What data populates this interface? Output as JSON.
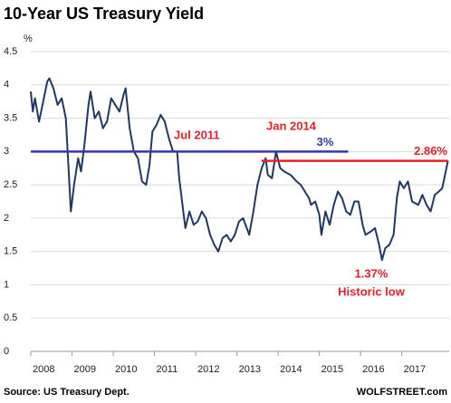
{
  "chart_data": {
    "type": "line",
    "title": "10-Year US Treasury Yield",
    "y_label": "%",
    "source": "Source: US Treasury Dept.",
    "credit": "WOLFSTREET.com",
    "color": "#1f3864",
    "grid": true,
    "xlim": [
      2008,
      2018.15
    ],
    "ylim": [
      0,
      4.5
    ],
    "xticks": [
      2008,
      2009,
      2010,
      2011,
      2012,
      2013,
      2014,
      2015,
      2016,
      2017
    ],
    "yticks": [
      0,
      0.5,
      1,
      1.5,
      2,
      2.5,
      3,
      3.5,
      4,
      4.5
    ],
    "x": [
      2008.0,
      2008.05,
      2008.1,
      2008.2,
      2008.3,
      2008.4,
      2008.45,
      2008.55,
      2008.65,
      2008.75,
      2008.85,
      2008.92,
      2008.97,
      2009.05,
      2009.15,
      2009.22,
      2009.3,
      2009.4,
      2009.45,
      2009.55,
      2009.65,
      2009.75,
      2009.85,
      2009.95,
      2010.05,
      2010.15,
      2010.25,
      2010.3,
      2010.4,
      2010.5,
      2010.6,
      2010.7,
      2010.8,
      2010.88,
      2010.95,
      2011.05,
      2011.15,
      2011.25,
      2011.35,
      2011.45,
      2011.55,
      2011.6,
      2011.7,
      2011.75,
      2011.85,
      2011.95,
      2012.05,
      2012.15,
      2012.25,
      2012.35,
      2012.45,
      2012.55,
      2012.65,
      2012.75,
      2012.85,
      2012.95,
      2013.05,
      2013.15,
      2013.3,
      2013.4,
      2013.5,
      2013.6,
      2013.7,
      2013.75,
      2013.85,
      2013.95,
      2014.05,
      2014.15,
      2014.3,
      2014.45,
      2014.55,
      2014.65,
      2014.75,
      2014.8,
      2014.9,
      2015.0,
      2015.05,
      2015.15,
      2015.25,
      2015.35,
      2015.45,
      2015.55,
      2015.65,
      2015.75,
      2015.85,
      2015.95,
      2016.05,
      2016.12,
      2016.25,
      2016.35,
      2016.45,
      2016.52,
      2016.6,
      2016.7,
      2016.8,
      2016.88,
      2016.95,
      2017.05,
      2017.15,
      2017.25,
      2017.4,
      2017.5,
      2017.6,
      2017.7,
      2017.8,
      2017.9,
      2017.98,
      2018.05,
      2018.12
    ],
    "values": [
      3.9,
      3.6,
      3.8,
      3.45,
      3.75,
      4.05,
      4.1,
      3.95,
      3.7,
      3.8,
      3.5,
      2.7,
      2.1,
      2.5,
      2.9,
      2.7,
      3.1,
      3.7,
      3.9,
      3.5,
      3.6,
      3.35,
      3.45,
      3.8,
      3.7,
      3.6,
      3.85,
      3.95,
      3.35,
      3.0,
      2.9,
      2.55,
      2.5,
      2.8,
      3.3,
      3.4,
      3.55,
      3.45,
      3.2,
      3.0,
      3.0,
      2.6,
      2.1,
      1.85,
      2.1,
      1.9,
      1.95,
      2.1,
      2.0,
      1.75,
      1.6,
      1.5,
      1.7,
      1.75,
      1.65,
      1.75,
      1.95,
      2.0,
      1.75,
      2.1,
      2.5,
      2.75,
      2.9,
      2.65,
      2.6,
      3.0,
      2.75,
      2.7,
      2.65,
      2.55,
      2.5,
      2.4,
      2.3,
      2.2,
      2.25,
      2.05,
      1.75,
      2.1,
      1.9,
      2.2,
      2.4,
      2.3,
      2.1,
      2.05,
      2.25,
      2.25,
      1.9,
      1.75,
      1.8,
      1.85,
      1.6,
      1.37,
      1.55,
      1.6,
      1.75,
      2.3,
      2.55,
      2.45,
      2.55,
      2.25,
      2.2,
      2.35,
      2.2,
      2.1,
      2.35,
      2.4,
      2.45,
      2.65,
      2.86
    ],
    "reference_lines": [
      {
        "value": 3,
        "label": "3%",
        "color": "#3535b5",
        "x_range": [
          2008,
          2015.7
        ]
      },
      {
        "value": 2.86,
        "label": "2.86%",
        "color": "#e8202a",
        "x_range": [
          2013.6,
          2018.12
        ]
      }
    ],
    "annotations": [
      {
        "text": "Jul 2011",
        "color": "#e8202a"
      },
      {
        "text": "Jan 2014",
        "color": "#e8202a"
      },
      {
        "text": "1.37%",
        "color": "#e8202a"
      },
      {
        "text": "Historic low",
        "color": "#e8202a"
      }
    ]
  }
}
